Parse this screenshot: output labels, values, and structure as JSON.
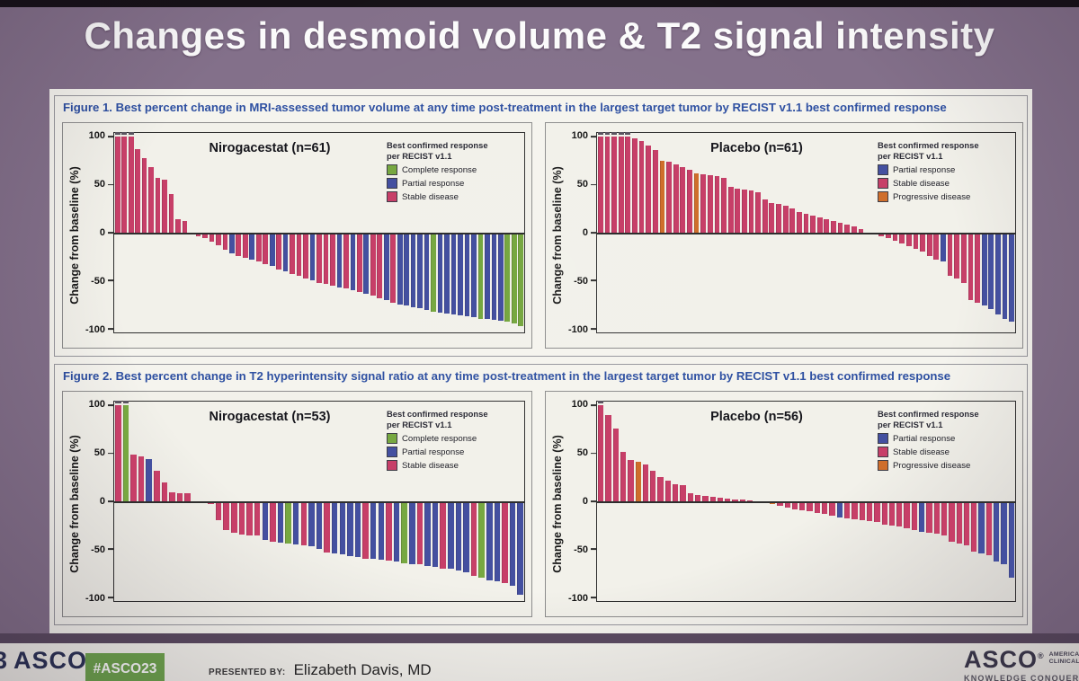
{
  "slide": {
    "title": "Changes in desmoid volume & T2 signal intensity"
  },
  "figure1": {
    "caption": "Figure 1. Best percent change in MRI-assessed tumor volume at any time post-treatment in the largest target tumor by RECIST v1.1 best confirmed response"
  },
  "figure2": {
    "caption": "Figure 2. Best percent change in T2 hyperintensity signal ratio at any time post-treatment in the largest target tumor by RECIST v1.1 best confirmed response"
  },
  "axis": {
    "label": "Change from baseline (%)",
    "ticks": [
      100,
      50,
      0,
      -50,
      -100
    ]
  },
  "legend_header": {
    "line1": "Best confirmed response",
    "line2": "per RECIST v1.1"
  },
  "legend_labels": {
    "CR": "Complete response",
    "PR": "Partial response",
    "SD": "Stable disease",
    "PD": "Progressive disease"
  },
  "series_colors": {
    "CR": "#77a841",
    "PR": "#4450a0",
    "SD": "#c73f68",
    "PD": "#cf6e2b"
  },
  "colors": {
    "background_purple": "#83708a",
    "caption_blue": "#2d4fa1",
    "badge_green": "#6fa64e",
    "logo_navy": "#2b3357",
    "panel_offwhite": "#f5f4ee"
  },
  "footer": {
    "left_fragment": "3",
    "left_logo": "ASCO",
    "left_logo_mark": "®",
    "hashtag": "#ASCO23",
    "presented_label": "PRESENTED BY:",
    "presenter": "Elizabeth Davis, MD",
    "right_logo": "ASCO",
    "right_logo_mark": "®",
    "right_logo_sub1": "AMERICAN",
    "right_logo_sub2": "CLINICAL",
    "right_tagline": "KNOWLEDGE CONQUER"
  },
  "chart_data": [
    {
      "type": "bar",
      "figure": "Figure 1",
      "title": "Nirogacestat (n=61)",
      "ylabel": "Change from baseline (%)",
      "ylim": [
        -100,
        100
      ],
      "yticks": [
        100,
        50,
        0,
        -50,
        -100
      ],
      "grid": false,
      "legend_position": "top-right",
      "legend": [
        "CR",
        "PR",
        "SD"
      ],
      "bars": [
        [
          100,
          "SD",
          1
        ],
        [
          100,
          "SD",
          1
        ],
        [
          100,
          "SD",
          1
        ],
        [
          87,
          "SD"
        ],
        [
          78,
          "SD"
        ],
        [
          68,
          "SD"
        ],
        [
          57,
          "SD"
        ],
        [
          55,
          "SD"
        ],
        [
          40,
          "SD"
        ],
        [
          14,
          "SD"
        ],
        [
          12,
          "SD"
        ],
        [
          -2,
          "SD"
        ],
        [
          -4,
          "SD"
        ],
        [
          -6,
          "SD"
        ],
        [
          -9,
          "SD"
        ],
        [
          -13,
          "SD"
        ],
        [
          -18,
          "SD"
        ],
        [
          -22,
          "PR"
        ],
        [
          -24,
          "SD"
        ],
        [
          -26,
          "SD"
        ],
        [
          -28,
          "PR"
        ],
        [
          -30,
          "SD"
        ],
        [
          -33,
          "SD"
        ],
        [
          -35,
          "PR"
        ],
        [
          -38,
          "SD"
        ],
        [
          -40,
          "PR"
        ],
        [
          -43,
          "SD"
        ],
        [
          -45,
          "SD"
        ],
        [
          -48,
          "SD"
        ],
        [
          -50,
          "PR"
        ],
        [
          -52,
          "SD"
        ],
        [
          -53,
          "SD"
        ],
        [
          -55,
          "SD"
        ],
        [
          -57,
          "PR"
        ],
        [
          -58,
          "SD"
        ],
        [
          -60,
          "PR"
        ],
        [
          -62,
          "SD"
        ],
        [
          -64,
          "PR"
        ],
        [
          -66,
          "SD"
        ],
        [
          -68,
          "SD"
        ],
        [
          -70,
          "PR"
        ],
        [
          -73,
          "SD"
        ],
        [
          -75,
          "PR"
        ],
        [
          -76,
          "PR"
        ],
        [
          -78,
          "PR"
        ],
        [
          -79,
          "PR"
        ],
        [
          -81,
          "PR"
        ],
        [
          -82,
          "CR"
        ],
        [
          -83,
          "PR"
        ],
        [
          -84,
          "PR"
        ],
        [
          -85,
          "PR"
        ],
        [
          -86,
          "PR"
        ],
        [
          -87,
          "PR"
        ],
        [
          -88,
          "PR"
        ],
        [
          -90,
          "CR"
        ],
        [
          -90,
          "PR"
        ],
        [
          -91,
          "PR"
        ],
        [
          -92,
          "PR"
        ],
        [
          -93,
          "CR"
        ],
        [
          -95,
          "CR"
        ],
        [
          -97,
          "CR"
        ]
      ]
    },
    {
      "type": "bar",
      "figure": "Figure 1",
      "title": "Placebo (n=61)",
      "ylabel": "Change from baseline (%)",
      "ylim": [
        -100,
        100
      ],
      "yticks": [
        100,
        50,
        0,
        -50,
        -100
      ],
      "grid": false,
      "legend_position": "top-right",
      "legend": [
        "PR",
        "SD",
        "PD"
      ],
      "bars": [
        [
          100,
          "SD",
          1
        ],
        [
          100,
          "SD",
          1
        ],
        [
          100,
          "SD",
          1
        ],
        [
          100,
          "SD",
          1
        ],
        [
          100,
          "SD",
          1
        ],
        [
          98,
          "SD"
        ],
        [
          96,
          "SD"
        ],
        [
          91,
          "SD"
        ],
        [
          86,
          "SD"
        ],
        [
          75,
          "PD"
        ],
        [
          74,
          "SD"
        ],
        [
          71,
          "SD"
        ],
        [
          68,
          "SD"
        ],
        [
          66,
          "SD"
        ],
        [
          62,
          "PD"
        ],
        [
          61,
          "SD"
        ],
        [
          60,
          "SD"
        ],
        [
          59,
          "SD"
        ],
        [
          57,
          "SD"
        ],
        [
          48,
          "SD"
        ],
        [
          46,
          "SD"
        ],
        [
          45,
          "SD"
        ],
        [
          44,
          "SD"
        ],
        [
          42,
          "SD"
        ],
        [
          35,
          "SD"
        ],
        [
          31,
          "SD"
        ],
        [
          30,
          "SD"
        ],
        [
          28,
          "SD"
        ],
        [
          25,
          "SD"
        ],
        [
          22,
          "SD"
        ],
        [
          20,
          "SD"
        ],
        [
          18,
          "SD"
        ],
        [
          16,
          "SD"
        ],
        [
          14,
          "SD"
        ],
        [
          12,
          "SD"
        ],
        [
          10,
          "SD"
        ],
        [
          8,
          "SD"
        ],
        [
          7,
          "SD"
        ],
        [
          4,
          "SD"
        ],
        [
          -1,
          "SD"
        ],
        [
          -2,
          "SD"
        ],
        [
          -4,
          "SD"
        ],
        [
          -6,
          "SD"
        ],
        [
          -8,
          "SD"
        ],
        [
          -11,
          "SD"
        ],
        [
          -14,
          "SD"
        ],
        [
          -17,
          "SD"
        ],
        [
          -20,
          "SD"
        ],
        [
          -24,
          "SD"
        ],
        [
          -28,
          "SD"
        ],
        [
          -30,
          "PR"
        ],
        [
          -45,
          "SD"
        ],
        [
          -48,
          "SD"
        ],
        [
          -52,
          "SD"
        ],
        [
          -70,
          "SD"
        ],
        [
          -73,
          "SD"
        ],
        [
          -76,
          "PR"
        ],
        [
          -80,
          "PR"
        ],
        [
          -85,
          "PR"
        ],
        [
          -90,
          "PR"
        ],
        [
          -93,
          "PR"
        ]
      ]
    },
    {
      "type": "bar",
      "figure": "Figure 2",
      "title": "Nirogacestat (n=53)",
      "ylabel": "Change from baseline (%)",
      "ylim": [
        -100,
        100
      ],
      "yticks": [
        100,
        50,
        0,
        -50,
        -100
      ],
      "grid": false,
      "legend_position": "top-right",
      "legend": [
        "CR",
        "PR",
        "SD"
      ],
      "bars": [
        [
          100,
          "SD",
          1
        ],
        [
          100,
          "CR",
          1
        ],
        [
          49,
          "SD"
        ],
        [
          47,
          "SD"
        ],
        [
          44,
          "PR"
        ],
        [
          32,
          "SD"
        ],
        [
          20,
          "SD"
        ],
        [
          9,
          "SD"
        ],
        [
          8,
          "SD"
        ],
        [
          8,
          "SD"
        ],
        [
          -1,
          "SD"
        ],
        [
          -2,
          "SD"
        ],
        [
          -3,
          "SD"
        ],
        [
          -20,
          "SD"
        ],
        [
          -30,
          "SD"
        ],
        [
          -33,
          "SD"
        ],
        [
          -35,
          "SD"
        ],
        [
          -36,
          "SD"
        ],
        [
          -36,
          "SD"
        ],
        [
          -40,
          "PR"
        ],
        [
          -42,
          "SD"
        ],
        [
          -43,
          "PR"
        ],
        [
          -44,
          "CR"
        ],
        [
          -45,
          "PR"
        ],
        [
          -46,
          "SD"
        ],
        [
          -47,
          "PR"
        ],
        [
          -50,
          "PR"
        ],
        [
          -53,
          "SD"
        ],
        [
          -54,
          "PR"
        ],
        [
          -55,
          "PR"
        ],
        [
          -57,
          "PR"
        ],
        [
          -58,
          "PR"
        ],
        [
          -60,
          "SD"
        ],
        [
          -60,
          "PR"
        ],
        [
          -61,
          "PR"
        ],
        [
          -62,
          "SD"
        ],
        [
          -63,
          "PR"
        ],
        [
          -65,
          "CR"
        ],
        [
          -66,
          "PR"
        ],
        [
          -66,
          "SD"
        ],
        [
          -67,
          "PR"
        ],
        [
          -68,
          "PR"
        ],
        [
          -70,
          "SD"
        ],
        [
          -70,
          "PR"
        ],
        [
          -72,
          "PR"
        ],
        [
          -74,
          "PR"
        ],
        [
          -78,
          "SD"
        ],
        [
          -80,
          "CR"
        ],
        [
          -82,
          "PR"
        ],
        [
          -83,
          "PR"
        ],
        [
          -85,
          "SD"
        ],
        [
          -88,
          "PR"
        ],
        [
          -97,
          "PR"
        ]
      ]
    },
    {
      "type": "bar",
      "figure": "Figure 2",
      "title": "Placebo (n=56)",
      "ylabel": "Change from baseline (%)",
      "ylim": [
        -100,
        100
      ],
      "yticks": [
        100,
        50,
        0,
        -50,
        -100
      ],
      "grid": false,
      "legend_position": "top-right",
      "legend": [
        "PR",
        "SD",
        "PD"
      ],
      "bars": [
        [
          100,
          "SD",
          1
        ],
        [
          90,
          "SD"
        ],
        [
          76,
          "SD"
        ],
        [
          52,
          "SD"
        ],
        [
          43,
          "SD"
        ],
        [
          41,
          "PD"
        ],
        [
          38,
          "SD"
        ],
        [
          32,
          "SD"
        ],
        [
          25,
          "SD"
        ],
        [
          22,
          "SD"
        ],
        [
          18,
          "SD"
        ],
        [
          17,
          "SD"
        ],
        [
          8,
          "SD"
        ],
        [
          7,
          "SD"
        ],
        [
          6,
          "SD"
        ],
        [
          5,
          "SD"
        ],
        [
          4,
          "SD"
        ],
        [
          3,
          "SD"
        ],
        [
          2,
          "SD"
        ],
        [
          2,
          "SD"
        ],
        [
          1,
          "SD"
        ],
        [
          -1,
          "SD"
        ],
        [
          -2,
          "SD"
        ],
        [
          -3,
          "PD"
        ],
        [
          -5,
          "SD"
        ],
        [
          -7,
          "SD"
        ],
        [
          -8,
          "SD"
        ],
        [
          -9,
          "SD"
        ],
        [
          -10,
          "SD"
        ],
        [
          -12,
          "SD"
        ],
        [
          -13,
          "SD"
        ],
        [
          -15,
          "SD"
        ],
        [
          -17,
          "PR"
        ],
        [
          -18,
          "SD"
        ],
        [
          -19,
          "SD"
        ],
        [
          -20,
          "SD"
        ],
        [
          -21,
          "SD"
        ],
        [
          -22,
          "SD"
        ],
        [
          -24,
          "SD"
        ],
        [
          -25,
          "SD"
        ],
        [
          -26,
          "SD"
        ],
        [
          -28,
          "SD"
        ],
        [
          -30,
          "SD"
        ],
        [
          -32,
          "PR"
        ],
        [
          -33,
          "SD"
        ],
        [
          -34,
          "SD"
        ],
        [
          -36,
          "SD"
        ],
        [
          -42,
          "SD"
        ],
        [
          -44,
          "SD"
        ],
        [
          -46,
          "SD"
        ],
        [
          -52,
          "SD"
        ],
        [
          -54,
          "PR"
        ],
        [
          -56,
          "SD"
        ],
        [
          -63,
          "PR"
        ],
        [
          -66,
          "PR"
        ],
        [
          -80,
          "PR"
        ]
      ]
    }
  ]
}
